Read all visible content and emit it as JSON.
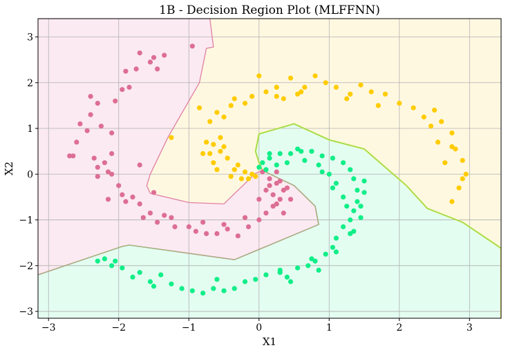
{
  "chart_data": {
    "type": "scatter",
    "title": "1B - Decision Region Plot (MLFFNN)",
    "xlabel": "X1",
    "ylabel": "X2",
    "xlim": [
      -3.15,
      3.45
    ],
    "ylim": [
      -3.15,
      3.4
    ],
    "xticks": [
      -3,
      -2,
      -1,
      0,
      1,
      2,
      3
    ],
    "yticks": [
      -3,
      -2,
      -1,
      0,
      1,
      2,
      3
    ],
    "xtick_labels": [
      "−3",
      "−2",
      "−1",
      "0",
      "1",
      "2",
      "3"
    ],
    "ytick_labels": [
      "−3",
      "−2",
      "−1",
      "0",
      "1",
      "2",
      "3"
    ],
    "grid": true,
    "colors": {
      "class_pink_points": "#dd6e93",
      "class_yellow_points": "#ffcc00",
      "class_green_points": "#11ee88",
      "region_pink": "#fbeaf1",
      "region_yellow": "#fff8e1",
      "region_green": "#e3fdf1",
      "boundary_pink": "#e07fa3",
      "boundary_green": "#66dd55",
      "boundary_yellow": "#f5e45a"
    },
    "regions": [
      {
        "class": "pink",
        "polygon": [
          [
            -3.15,
            -2.2
          ],
          [
            -1.95,
            -1.58
          ],
          [
            -1.85,
            -1.55
          ],
          [
            -0.35,
            -1.87
          ],
          [
            0.85,
            -1.1
          ],
          [
            0.8,
            -0.7
          ],
          [
            0.5,
            -0.25
          ],
          [
            0.05,
            0.08
          ],
          [
            -0.05,
            0.02
          ],
          [
            -0.5,
            -0.65
          ],
          [
            -1.0,
            -0.62
          ],
          [
            -1.55,
            -0.42
          ],
          [
            -1.6,
            -0.25
          ],
          [
            -1.55,
            0.0
          ],
          [
            -1.3,
            0.8
          ],
          [
            -0.85,
            2.0
          ],
          [
            -0.75,
            2.75
          ],
          [
            -0.65,
            2.78
          ],
          [
            -0.7,
            3.4
          ],
          [
            -3.15,
            3.4
          ]
        ]
      },
      {
        "class": "green",
        "polygon": [
          [
            -3.15,
            -2.2
          ],
          [
            -1.95,
            -1.58
          ],
          [
            -1.85,
            -1.55
          ],
          [
            -0.35,
            -1.87
          ],
          [
            0.85,
            -1.1
          ],
          [
            0.8,
            -0.7
          ],
          [
            0.5,
            -0.25
          ],
          [
            0.05,
            0.08
          ],
          [
            0.0,
            0.25
          ],
          [
            -0.05,
            0.5
          ],
          [
            0.0,
            0.88
          ],
          [
            0.5,
            1.1
          ],
          [
            1.0,
            0.75
          ],
          [
            1.5,
            0.55
          ],
          [
            2.1,
            -0.25
          ],
          [
            2.4,
            -0.75
          ],
          [
            2.9,
            -1.05
          ],
          [
            3.45,
            -1.62
          ],
          [
            3.45,
            -3.15
          ],
          [
            -3.15,
            -3.15
          ]
        ]
      },
      {
        "class": "yellow",
        "polygon": [
          [
            -0.7,
            3.4
          ],
          [
            -0.65,
            2.78
          ],
          [
            -0.75,
            2.75
          ],
          [
            -0.85,
            2.0
          ],
          [
            -1.3,
            0.8
          ],
          [
            -1.55,
            0.0
          ],
          [
            -1.6,
            -0.25
          ],
          [
            -1.55,
            -0.42
          ],
          [
            -1.0,
            -0.62
          ],
          [
            -0.5,
            -0.65
          ],
          [
            -0.05,
            0.02
          ],
          [
            0.05,
            0.08
          ],
          [
            0.0,
            0.25
          ],
          [
            -0.05,
            0.5
          ],
          [
            0.0,
            0.88
          ],
          [
            0.5,
            1.1
          ],
          [
            1.0,
            0.75
          ],
          [
            1.5,
            0.55
          ],
          [
            2.1,
            -0.25
          ],
          [
            2.4,
            -0.75
          ],
          [
            2.9,
            -1.05
          ],
          [
            3.45,
            -1.62
          ],
          [
            3.45,
            3.4
          ]
        ]
      }
    ],
    "series": [
      {
        "class": "pink",
        "points": [
          [
            -2.65,
            0.4
          ],
          [
            -2.45,
            0.95
          ],
          [
            -2.4,
            1.3
          ],
          [
            -2.3,
            1.55
          ],
          [
            -2.35,
            0.35
          ],
          [
            -2.2,
            0.25
          ],
          [
            -2.1,
            0.9
          ],
          [
            -2.05,
            1.6
          ],
          [
            -2.1,
            0.45
          ],
          [
            -1.95,
            1.85
          ],
          [
            -1.9,
            2.25
          ],
          [
            -1.75,
            2.3
          ],
          [
            -1.7,
            2.65
          ],
          [
            -1.55,
            2.45
          ],
          [
            -1.5,
            2.55
          ],
          [
            -1.35,
            2.6
          ],
          [
            -1.45,
            2.3
          ],
          [
            -2.3,
            -0.05
          ],
          [
            -2.15,
            0.05
          ],
          [
            -2.0,
            -0.25
          ],
          [
            -1.95,
            -0.45
          ],
          [
            -1.9,
            -0.6
          ],
          [
            -1.8,
            -0.5
          ],
          [
            -1.7,
            -0.65
          ],
          [
            -1.65,
            -0.95
          ],
          [
            -1.55,
            -0.85
          ],
          [
            -1.45,
            -1.05
          ],
          [
            -1.35,
            -0.9
          ],
          [
            -1.2,
            -1.15
          ],
          [
            -1.0,
            -1.15
          ],
          [
            -0.9,
            -1.25
          ],
          [
            -0.75,
            -1.3
          ],
          [
            -0.6,
            -1.3
          ],
          [
            -0.45,
            -1.2
          ],
          [
            -0.3,
            -1.35
          ],
          [
            -0.15,
            -1.15
          ],
          [
            0.0,
            -1.0
          ],
          [
            0.1,
            -0.85
          ],
          [
            0.2,
            -0.7
          ],
          [
            0.3,
            -0.55
          ],
          [
            0.35,
            -0.35
          ],
          [
            0.25,
            -0.2
          ],
          [
            0.15,
            -0.1
          ],
          [
            0.05,
            0.05
          ],
          [
            0.25,
            0.05
          ],
          [
            0.3,
            -0.15
          ],
          [
            0.4,
            -0.3
          ],
          [
            0.45,
            -0.55
          ],
          [
            -0.95,
            2.8
          ],
          [
            -2.7,
            0.4
          ],
          [
            -2.6,
            0.7
          ],
          [
            -2.55,
            1.1
          ],
          [
            -2.4,
            1.7
          ],
          [
            -2.25,
            1.05
          ],
          [
            -2.1,
            0.0
          ],
          [
            -1.5,
            -0.4
          ],
          [
            -1.25,
            -0.95
          ],
          [
            -0.8,
            -1.05
          ],
          [
            -0.5,
            -1.1
          ],
          [
            -0.2,
            -0.95
          ],
          [
            0.0,
            -0.55
          ],
          [
            0.1,
            -0.35
          ],
          [
            0.15,
            -0.25
          ],
          [
            0.2,
            -0.45
          ],
          [
            0.25,
            -0.65
          ],
          [
            0.35,
            -0.85
          ],
          [
            -1.7,
            0.2
          ],
          [
            -1.85,
            1.9
          ],
          [
            -2.3,
            0.15
          ],
          [
            -2.15,
            -0.55
          ]
        ]
      },
      {
        "class": "yellow",
        "points": [
          [
            -1.25,
            0.8
          ],
          [
            -0.85,
            1.45
          ],
          [
            -0.7,
            1.15
          ],
          [
            -0.6,
            1.35
          ],
          [
            -0.5,
            1.25
          ],
          [
            -0.4,
            1.5
          ],
          [
            -0.35,
            1.65
          ],
          [
            -0.2,
            1.55
          ],
          [
            -0.1,
            1.7
          ],
          [
            0.0,
            2.15
          ],
          [
            0.1,
            1.8
          ],
          [
            0.25,
            1.7
          ],
          [
            0.35,
            1.65
          ],
          [
            0.45,
            2.1
          ],
          [
            0.55,
            1.75
          ],
          [
            0.65,
            1.9
          ],
          [
            0.8,
            2.15
          ],
          [
            0.95,
            2.0
          ],
          [
            1.1,
            1.9
          ],
          [
            1.25,
            1.65
          ],
          [
            1.45,
            1.95
          ],
          [
            1.6,
            1.8
          ],
          [
            1.8,
            1.75
          ],
          [
            2.0,
            1.55
          ],
          [
            2.2,
            1.45
          ],
          [
            2.35,
            1.25
          ],
          [
            2.5,
            1.4
          ],
          [
            2.6,
            1.15
          ],
          [
            2.75,
            0.9
          ],
          [
            2.8,
            0.55
          ],
          [
            2.9,
            0.3
          ],
          [
            2.95,
            0.0
          ],
          [
            2.85,
            -0.3
          ],
          [
            2.75,
            -0.6
          ],
          [
            2.55,
            0.7
          ],
          [
            2.65,
            0.25
          ],
          [
            -0.75,
            0.7
          ],
          [
            -0.7,
            0.45
          ],
          [
            -0.65,
            0.25
          ],
          [
            -0.5,
            0.6
          ],
          [
            -0.45,
            0.35
          ],
          [
            -0.35,
            0.1
          ],
          [
            -0.2,
            0.05
          ],
          [
            -0.1,
            0.0
          ],
          [
            -0.05,
            -0.05
          ],
          [
            -0.6,
            0.1
          ],
          [
            -0.8,
            0.45
          ],
          [
            -0.55,
            0.8
          ],
          [
            -0.3,
            0.2
          ],
          [
            -0.15,
            -0.1
          ],
          [
            -0.55,
            0.5
          ],
          [
            -0.65,
            0.65
          ],
          [
            0.25,
            1.9
          ],
          [
            0.6,
            1.8
          ],
          [
            1.3,
            1.75
          ],
          [
            1.7,
            1.5
          ],
          [
            2.45,
            1.05
          ],
          [
            2.9,
            -0.1
          ],
          [
            2.75,
            0.6
          ],
          [
            -0.4,
            -0.05
          ],
          [
            -0.25,
            -0.1
          ]
        ]
      },
      {
        "class": "green",
        "points": [
          [
            -2.3,
            -1.9
          ],
          [
            -2.2,
            -1.85
          ],
          [
            -2.1,
            -2.0
          ],
          [
            -1.95,
            -2.05
          ],
          [
            -1.8,
            -2.25
          ],
          [
            -1.7,
            -2.15
          ],
          [
            -1.55,
            -2.35
          ],
          [
            -1.4,
            -2.2
          ],
          [
            -1.25,
            -2.4
          ],
          [
            -1.1,
            -2.5
          ],
          [
            -0.95,
            -2.55
          ],
          [
            -0.8,
            -2.6
          ],
          [
            -0.65,
            -2.5
          ],
          [
            -0.5,
            -2.55
          ],
          [
            -0.35,
            -2.5
          ],
          [
            -0.2,
            -2.35
          ],
          [
            -0.05,
            -2.3
          ],
          [
            0.1,
            -2.2
          ],
          [
            0.3,
            -2.1
          ],
          [
            0.4,
            -2.25
          ],
          [
            0.55,
            -2.05
          ],
          [
            0.7,
            -2.0
          ],
          [
            0.8,
            -1.9
          ],
          [
            0.95,
            -1.75
          ],
          [
            1.05,
            -1.6
          ],
          [
            1.1,
            -1.4
          ],
          [
            1.2,
            -1.15
          ],
          [
            1.3,
            -1.0
          ],
          [
            1.35,
            -0.8
          ],
          [
            1.4,
            -0.6
          ],
          [
            1.4,
            -0.35
          ],
          [
            1.35,
            -0.1
          ],
          [
            1.3,
            0.1
          ],
          [
            1.2,
            0.25
          ],
          [
            1.05,
            0.35
          ],
          [
            0.9,
            0.4
          ],
          [
            0.75,
            0.5
          ],
          [
            0.6,
            0.5
          ],
          [
            0.45,
            0.45
          ],
          [
            0.3,
            0.45
          ],
          [
            0.15,
            0.35
          ],
          [
            0.05,
            0.25
          ],
          [
            0.0,
            0.15
          ],
          [
            0.1,
            0.1
          ],
          [
            0.25,
            0.2
          ],
          [
            0.4,
            0.25
          ],
          [
            0.65,
            0.3
          ],
          [
            0.85,
            0.2
          ],
          [
            1.0,
            0.0
          ],
          [
            1.1,
            -0.2
          ],
          [
            1.2,
            -0.5
          ],
          [
            1.45,
            -0.7
          ],
          [
            1.35,
            -1.25
          ],
          [
            1.1,
            -1.7
          ],
          [
            0.85,
            -2.1
          ],
          [
            0.45,
            -2.35
          ],
          [
            -0.6,
            -2.3
          ],
          [
            -1.5,
            -2.45
          ],
          [
            -2.05,
            -1.9
          ],
          [
            1.5,
            -0.4
          ],
          [
            1.45,
            -0.95
          ],
          [
            1.3,
            -1.3
          ],
          [
            1.5,
            -0.15
          ],
          [
            0.15,
            0.45
          ],
          [
            0.55,
            0.55
          ],
          [
            0.9,
            0.05
          ],
          [
            1.05,
            -0.3
          ],
          [
            1.25,
            -0.7
          ],
          [
            0.75,
            -1.85
          ],
          [
            0.3,
            -2.15
          ]
        ]
      }
    ]
  }
}
